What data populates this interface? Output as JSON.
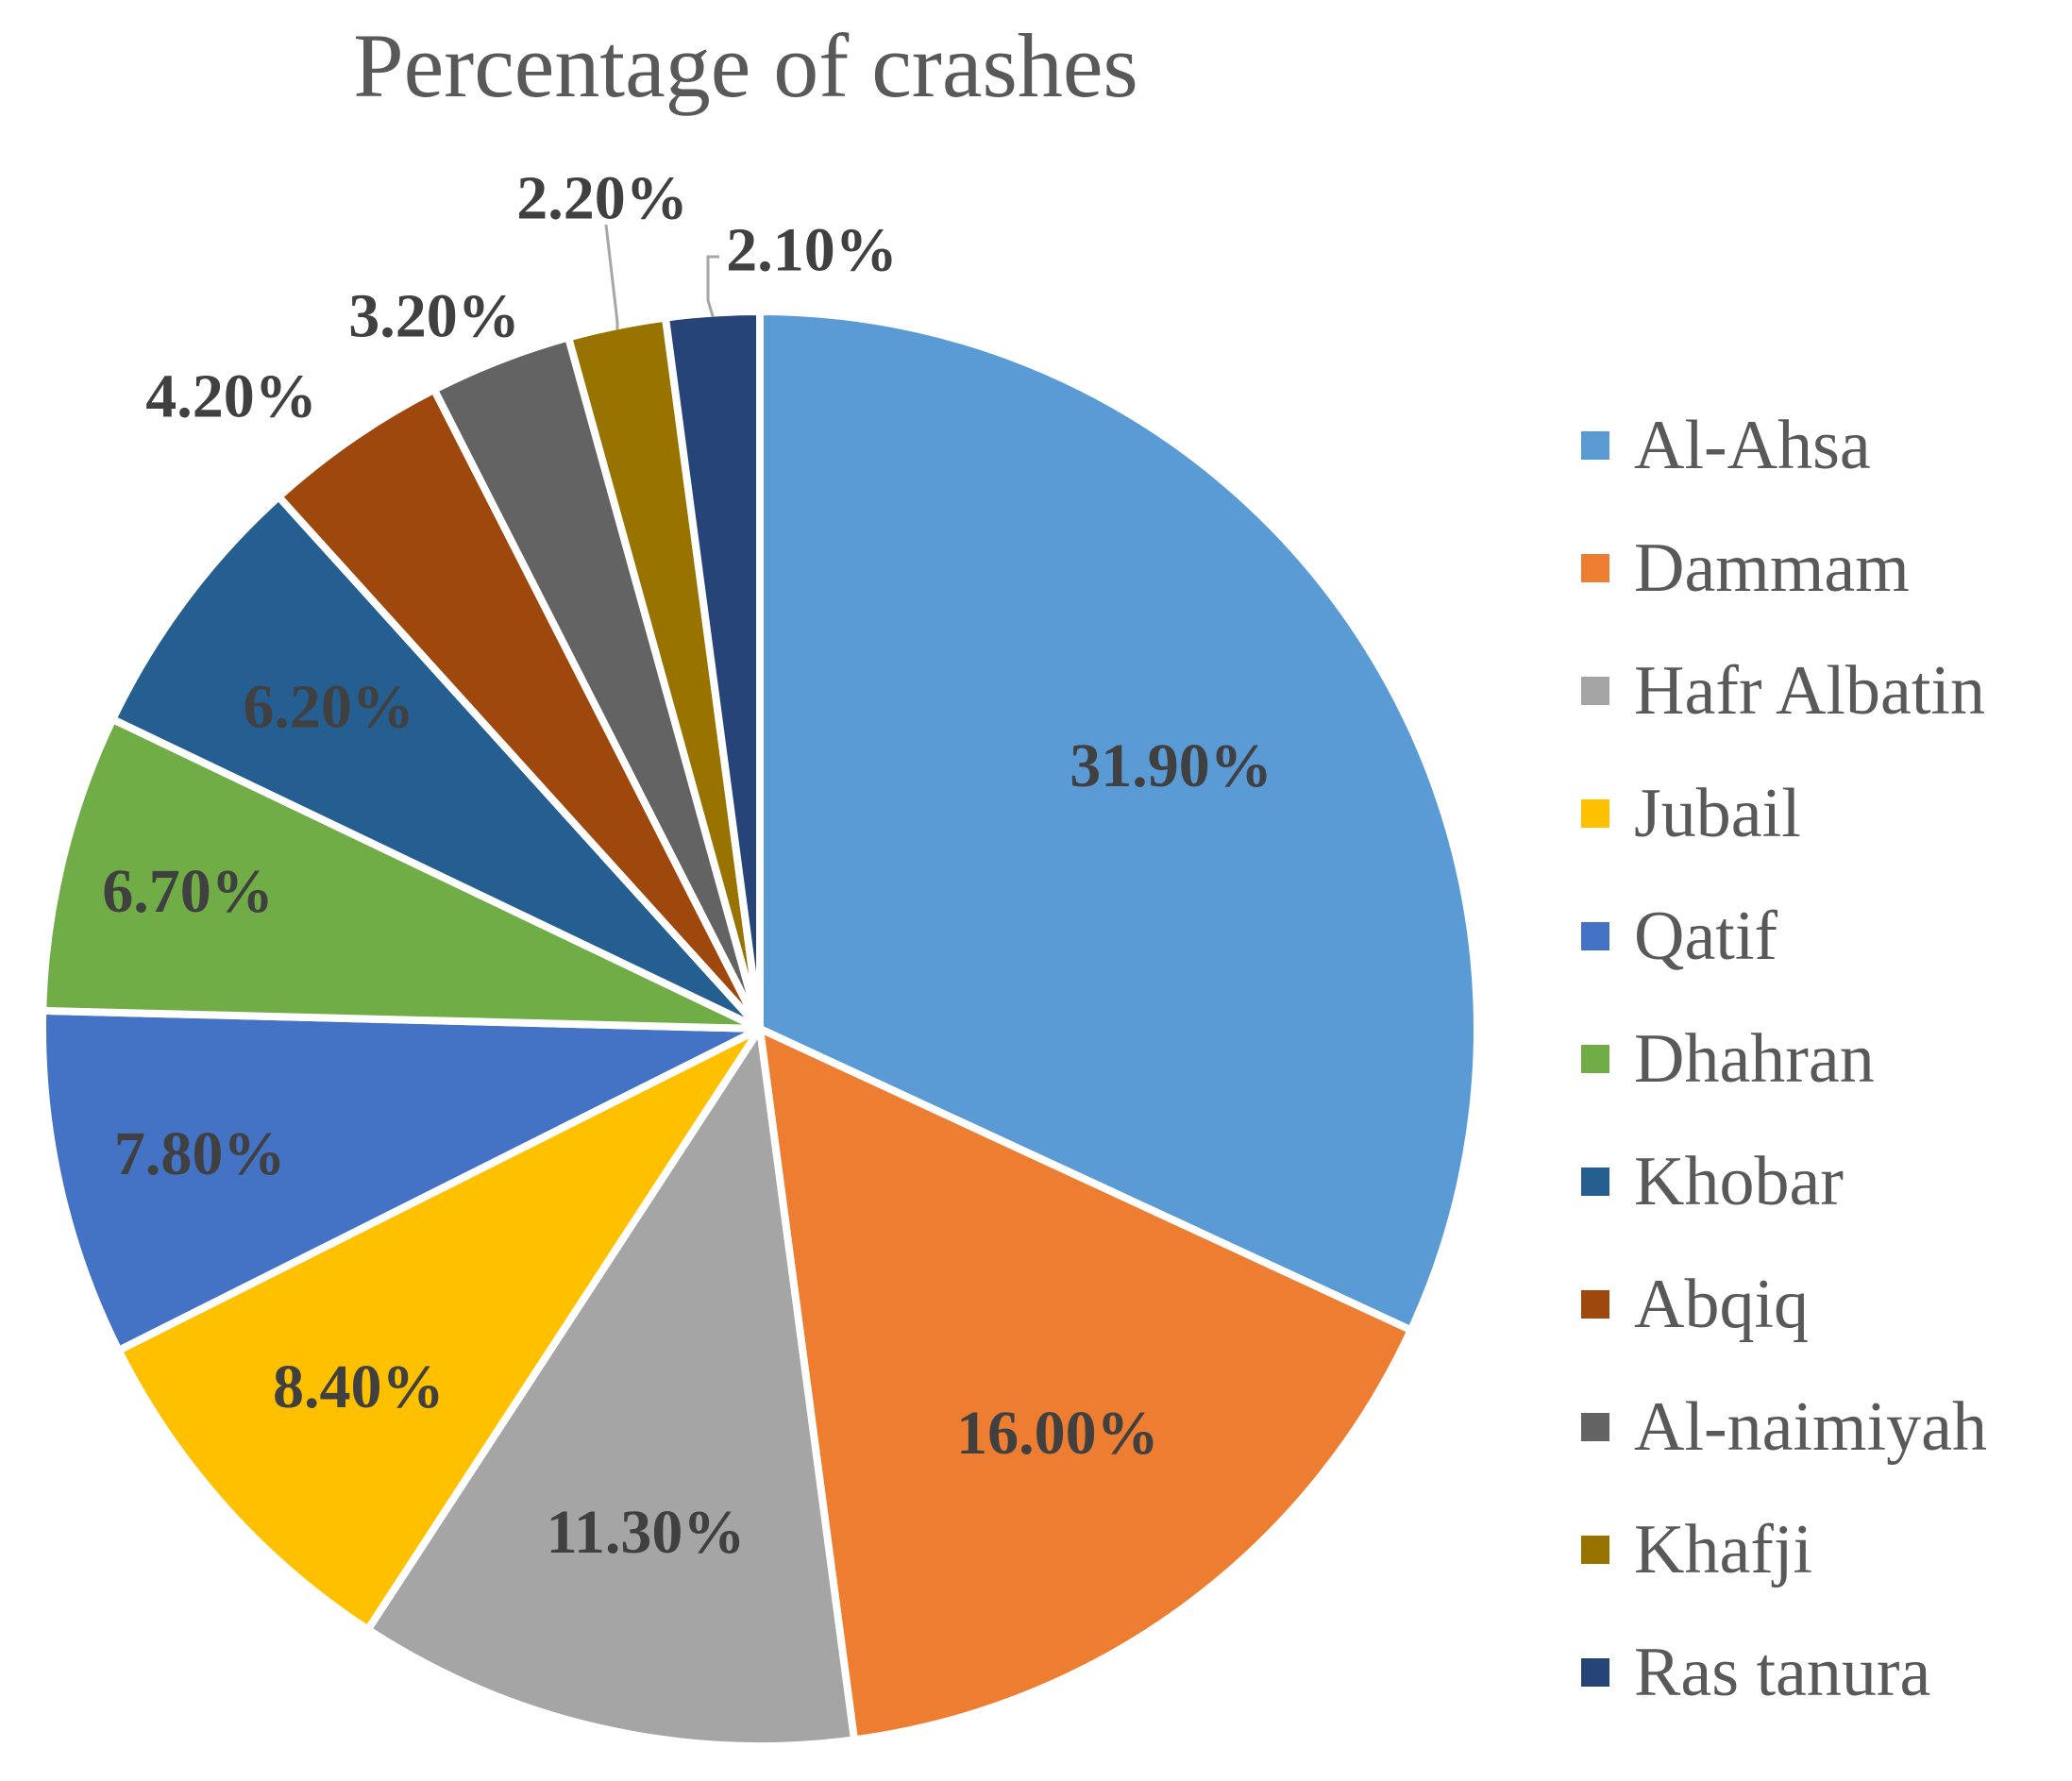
{
  "chart_data": {
    "type": "pie",
    "title": "Percentage of crashes",
    "categories": [
      "Al-Ahsa",
      "Dammam",
      "Hafr Albatin",
      "Jubail",
      "Qatif",
      "Dhahran",
      "Khobar",
      "Abqiq",
      "Al-naimiyah",
      "Khafji",
      "Ras tanura"
    ],
    "values": [
      31.9,
      16.0,
      11.3,
      8.4,
      7.8,
      6.7,
      6.2,
      4.2,
      3.2,
      2.2,
      2.1
    ],
    "labels": [
      "31.90%",
      "16.00%",
      "11.30%",
      "8.40%",
      "7.80%",
      "6.70%",
      "6.20%",
      "4.20%",
      "3.20%",
      "2.20%",
      "2.10%"
    ],
    "colors": [
      "#5B9BD5",
      "#ED7D31",
      "#A5A5A5",
      "#FFC000",
      "#4472C4",
      "#70AD47",
      "#255E91",
      "#9E480E",
      "#636363",
      "#997300",
      "#264478"
    ],
    "legend_position": "right",
    "start_angle": "12 o'clock",
    "direction": "clockwise"
  }
}
